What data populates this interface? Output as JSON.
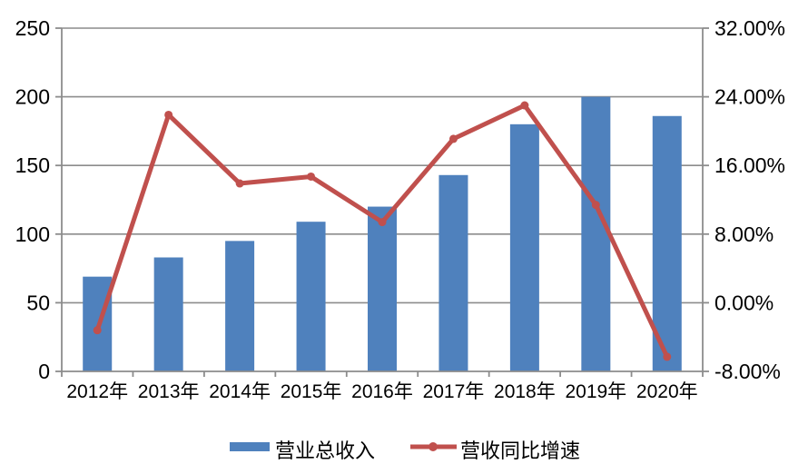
{
  "chart_data": {
    "type": "combo",
    "title": "",
    "categories": [
      "2012年",
      "2013年",
      "2014年",
      "2015年",
      "2016年",
      "2017年",
      "2018年",
      "2019年",
      "2020年"
    ],
    "series": [
      {
        "name": "营业总收入",
        "type": "bar",
        "axis": "left",
        "color": "#4F81BD",
        "values": [
          69,
          83,
          95,
          109,
          120,
          143,
          180,
          200,
          186
        ]
      },
      {
        "name": "营收同比增速",
        "type": "line",
        "axis": "right",
        "color": "#C0504D",
        "values": [
          -3.2,
          21.9,
          13.9,
          14.7,
          9.4,
          19.1,
          23.0,
          11.4,
          -6.3
        ]
      }
    ],
    "left_axis": {
      "min": 0,
      "max": 250,
      "step": 50,
      "tick_labels": [
        "0",
        "50",
        "100",
        "150",
        "200",
        "250"
      ]
    },
    "right_axis": {
      "min": -8,
      "max": 32,
      "step": 8,
      "tick_labels": [
        "-8.00%",
        "0.00%",
        "8.00%",
        "16.00%",
        "24.00%",
        "32.00%"
      ]
    },
    "grid": true,
    "legend_position": "bottom",
    "colors": {
      "bar": "#4F81BD",
      "line": "#C0504D",
      "gridline": "#8C8C8C",
      "axis": "#8C8C8C",
      "text": "#000000",
      "background": "#FFFFFF"
    }
  }
}
